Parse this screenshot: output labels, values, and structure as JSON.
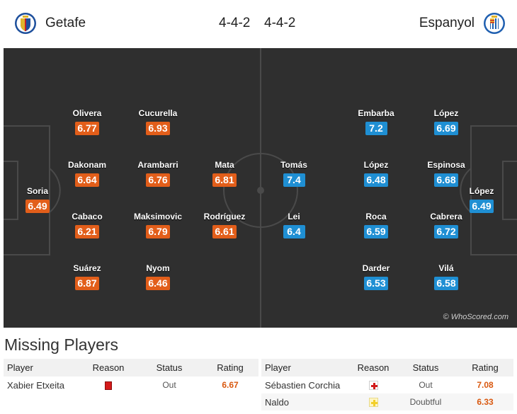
{
  "header": {
    "home_team": "Getafe",
    "away_team": "Espanyol",
    "home_formation": "4-4-2",
    "away_formation": "4-4-2"
  },
  "colors": {
    "pitch": "#2f2f2f",
    "home_rating": "#e25e1a",
    "away_rating": "#1f8fd3"
  },
  "pitch": {
    "watermark": "© WhoScored.com",
    "home_players": [
      {
        "name": "Soria",
        "rating": "6.49"
      },
      {
        "name": "Olivera",
        "rating": "6.77"
      },
      {
        "name": "Dakonam",
        "rating": "6.64"
      },
      {
        "name": "Cabaco",
        "rating": "6.21"
      },
      {
        "name": "Suárez",
        "rating": "6.87"
      },
      {
        "name": "Cucurella",
        "rating": "6.93"
      },
      {
        "name": "Arambarri",
        "rating": "6.76"
      },
      {
        "name": "Maksimovic",
        "rating": "6.79"
      },
      {
        "name": "Nyom",
        "rating": "6.46"
      },
      {
        "name": "Mata",
        "rating": "6.81"
      },
      {
        "name": "Rodríguez",
        "rating": "6.61"
      }
    ],
    "away_players": [
      {
        "name": "Tomás",
        "rating": "7.4"
      },
      {
        "name": "Lei",
        "rating": "6.4"
      },
      {
        "name": "Embarba",
        "rating": "7.2"
      },
      {
        "name": "López",
        "rating": "6.48"
      },
      {
        "name": "Roca",
        "rating": "6.59"
      },
      {
        "name": "Darder",
        "rating": "6.53"
      },
      {
        "name": "López",
        "rating": "6.69"
      },
      {
        "name": "Espinosa",
        "rating": "6.68"
      },
      {
        "name": "Cabrera",
        "rating": "6.72"
      },
      {
        "name": "Vilá",
        "rating": "6.58"
      },
      {
        "name": "López",
        "rating": "6.49"
      }
    ]
  },
  "missing": {
    "title": "Missing Players",
    "columns": {
      "player": "Player",
      "reason": "Reason",
      "status": "Status",
      "rating": "Rating"
    },
    "home": [
      {
        "player": "Xabier Etxeita",
        "reason_icon": "red-card-icon",
        "status": "Out",
        "rating": "6.67"
      }
    ],
    "away": [
      {
        "player": "Sébastien Corchia",
        "reason_icon": "injury-icon",
        "status": "Out",
        "rating": "7.08"
      },
      {
        "player": "Naldo",
        "reason_icon": "doubtful-icon",
        "status": "Doubtful",
        "rating": "6.33"
      }
    ]
  }
}
